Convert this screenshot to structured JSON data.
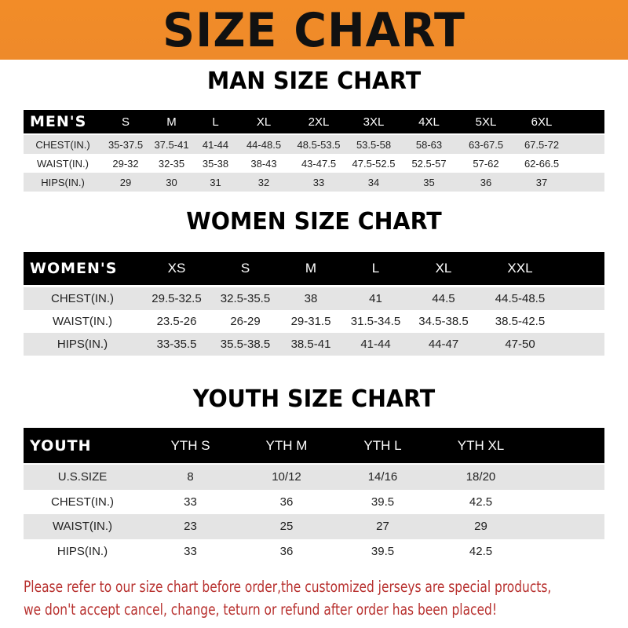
{
  "banner_title": "SIZE CHART",
  "men": {
    "title": "MAN SIZE CHART",
    "header": [
      "MEN'S",
      "S",
      "M",
      "L",
      "XL",
      "2XL",
      "3XL",
      "4XL",
      "5XL",
      "6XL"
    ],
    "rows": [
      [
        "CHEST(IN.)",
        "35-37.5",
        "37.5-41",
        "41-44",
        "44-48.5",
        "48.5-53.5",
        "53.5-58",
        "58-63",
        "63-67.5",
        "67.5-72"
      ],
      [
        "WAIST(IN.)",
        "29-32",
        "32-35",
        "35-38",
        "38-43",
        "43-47.5",
        "47.5-52.5",
        "52.5-57",
        "57-62",
        "62-66.5"
      ],
      [
        "HIPS(IN.)",
        "29",
        "30",
        "31",
        "32",
        "33",
        "34",
        "35",
        "36",
        "37"
      ]
    ]
  },
  "women": {
    "title": "WOMEN SIZE CHART",
    "header": [
      "WOMEN'S",
      "XS",
      "S",
      "M",
      "L",
      "XL",
      "XXL"
    ],
    "rows": [
      [
        "CHEST(IN.)",
        "29.5-32.5",
        "32.5-35.5",
        "38",
        "41",
        "44.5",
        "44.5-48.5"
      ],
      [
        "WAIST(IN.)",
        "23.5-26",
        "26-29",
        "29-31.5",
        "31.5-34.5",
        "34.5-38.5",
        "38.5-42.5"
      ],
      [
        "HIPS(IN.)",
        "33-35.5",
        "35.5-38.5",
        "38.5-41",
        "41-44",
        "44-47",
        "47-50"
      ]
    ]
  },
  "youth": {
    "title": "YOUTH SIZE CHART",
    "header": [
      "YOUTH",
      "YTH S",
      "YTH M",
      "YTH L",
      "YTH XL"
    ],
    "rows": [
      [
        "U.S.SIZE",
        "8",
        "10/12",
        "14/16",
        "18/20"
      ],
      [
        "CHEST(IN.)",
        "33",
        "36",
        "39.5",
        "42.5"
      ],
      [
        "WAIST(IN.)",
        "23",
        "25",
        "27",
        "29"
      ],
      [
        "HIPS(IN.)",
        "33",
        "36",
        "39.5",
        "42.5"
      ]
    ]
  },
  "note": {
    "line1": "Please refer to our size chart before order,the customized jerseys are special products,",
    "line2": "we don't accept cancel, change, teturn or refund after order has been placed!"
  },
  "colors": {
    "banner": "#f28c28",
    "header_row": "#000000",
    "stripe": "#e4e4e4",
    "note": "#b8312f"
  }
}
